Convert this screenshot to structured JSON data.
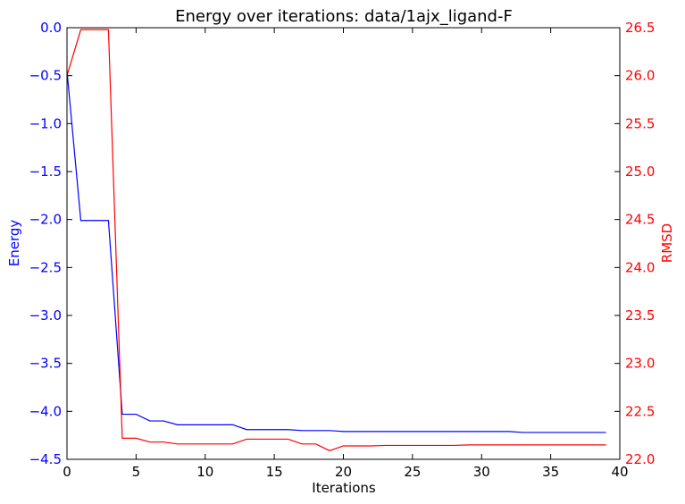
{
  "chart_data": {
    "type": "line",
    "title": "Energy over iterations: data/1ajx_ligand-F",
    "xlabel": "Iterations",
    "xlim": [
      0,
      40
    ],
    "x_ticks": [
      "0",
      "5",
      "10",
      "15",
      "20",
      "25",
      "30",
      "35",
      "40"
    ],
    "grid": false,
    "y_left": {
      "label": "Energy",
      "color": "#0000ff",
      "lim": [
        -4.5,
        0.0
      ],
      "ticks": [
        "0.0",
        "−0.5",
        "−1.0",
        "−1.5",
        "−2.0",
        "−2.5",
        "−3.0",
        "−3.5",
        "−4.0",
        "−4.5"
      ]
    },
    "y_right": {
      "label": "RMSD",
      "color": "#ff0000",
      "lim": [
        22.0,
        26.5
      ],
      "ticks": [
        "22.0",
        "22.5",
        "23.0",
        "23.5",
        "24.0",
        "24.5",
        "25.0",
        "25.5",
        "26.0",
        "26.5"
      ]
    },
    "x": [
      0,
      1,
      2,
      3,
      4,
      5,
      6,
      7,
      8,
      9,
      10,
      11,
      12,
      13,
      14,
      15,
      16,
      17,
      18,
      19,
      20,
      21,
      22,
      23,
      24,
      25,
      26,
      27,
      28,
      29,
      30,
      31,
      32,
      33,
      34,
      35,
      36,
      37,
      38,
      39
    ],
    "series": [
      {
        "axis": "left",
        "color": "#0000ff",
        "values": [
          -0.45,
          -2.01,
          -2.01,
          -2.01,
          -4.03,
          -4.03,
          -4.1,
          -4.1,
          -4.14,
          -4.14,
          -4.14,
          -4.14,
          -4.14,
          -4.19,
          -4.19,
          -4.19,
          -4.19,
          -4.2,
          -4.2,
          -4.2,
          -4.21,
          -4.21,
          -4.21,
          -4.21,
          -4.21,
          -4.21,
          -4.21,
          -4.21,
          -4.21,
          -4.21,
          -4.21,
          -4.21,
          -4.21,
          -4.22,
          -4.22,
          -4.22,
          -4.22,
          -4.22,
          -4.22,
          -4.22
        ]
      },
      {
        "axis": "right",
        "color": "#ff0000",
        "values": [
          26.0,
          26.48,
          26.48,
          26.48,
          22.22,
          22.22,
          22.18,
          22.18,
          22.16,
          22.16,
          22.16,
          22.16,
          22.16,
          22.21,
          22.21,
          22.21,
          22.21,
          22.16,
          22.16,
          22.09,
          22.14,
          22.14,
          22.14,
          22.145,
          22.145,
          22.145,
          22.145,
          22.145,
          22.145,
          22.15,
          22.15,
          22.15,
          22.15,
          22.15,
          22.15,
          22.15,
          22.15,
          22.15,
          22.15,
          22.15
        ]
      }
    ]
  }
}
